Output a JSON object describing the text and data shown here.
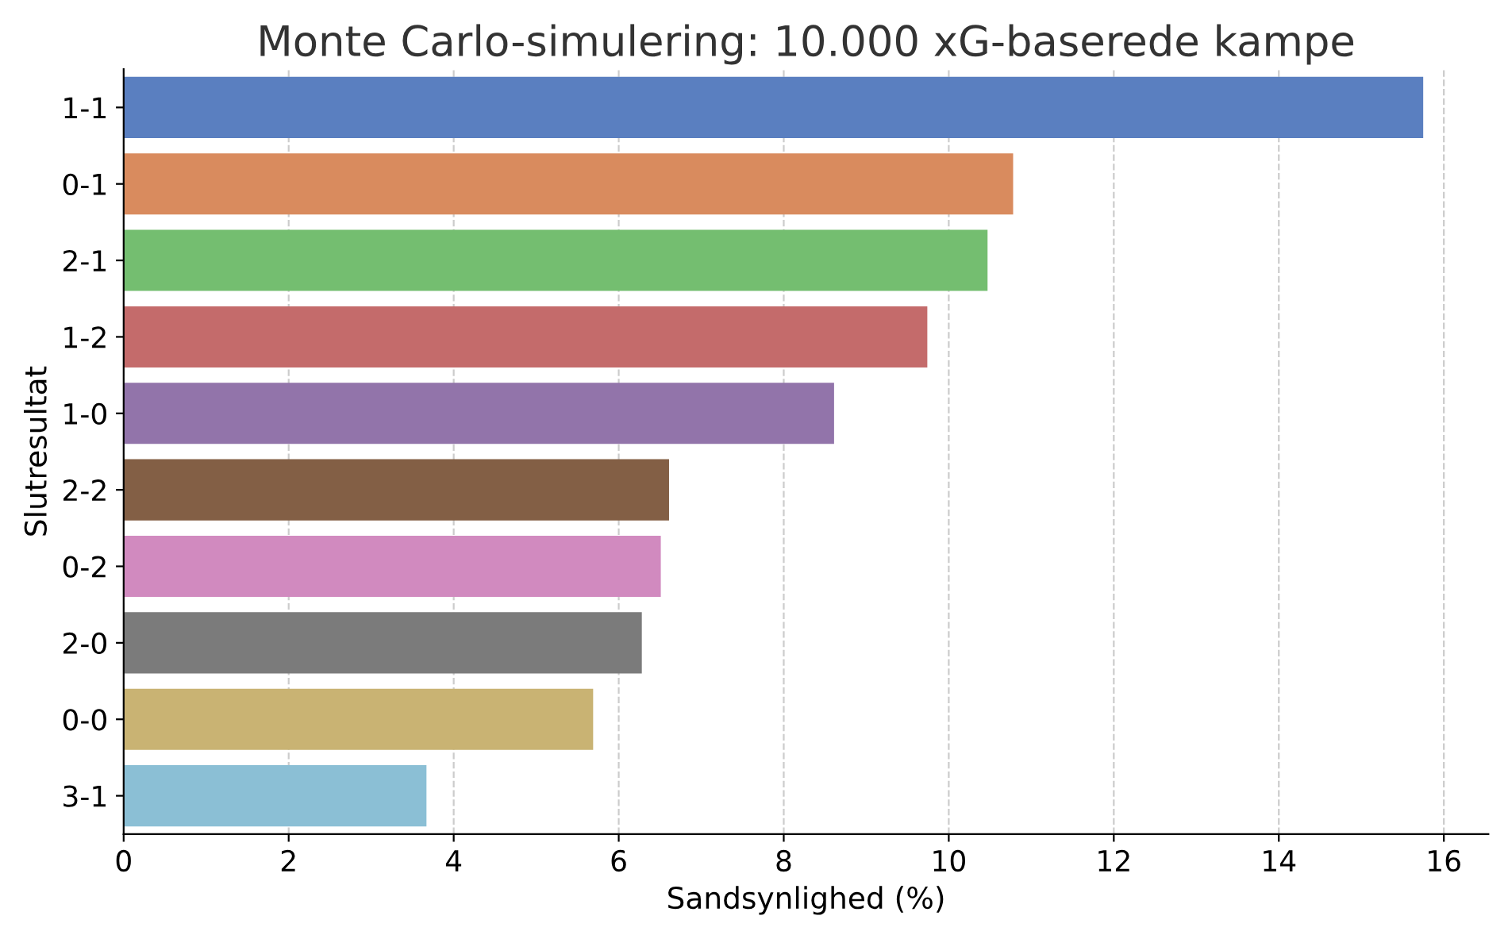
{
  "chart_data": {
    "type": "bar",
    "orientation": "horizontal",
    "title": "Monte Carlo-simulering: 10.000 xG-baserede kampe",
    "xlabel": "Sandsynlighed (%)",
    "ylabel": "Slutresultat",
    "categories": [
      "1-1",
      "0-1",
      "2-1",
      "1-2",
      "1-0",
      "2-2",
      "0-2",
      "2-0",
      "0-0",
      "3-1"
    ],
    "values": [
      15.75,
      10.78,
      10.47,
      9.74,
      8.61,
      6.61,
      6.51,
      6.28,
      5.69,
      3.67
    ],
    "colors": [
      "#5a7fc0",
      "#d98b5e",
      "#74be70",
      "#c46b6b",
      "#9274aa",
      "#835f45",
      "#d18abf",
      "#7b7b7b",
      "#c9b373",
      "#8bbfd5"
    ],
    "xlim": [
      0,
      16.54
    ],
    "xticks": [
      0,
      2,
      4,
      6,
      8,
      10,
      12,
      14,
      16
    ],
    "grid": "x",
    "line_style": "dashed"
  }
}
